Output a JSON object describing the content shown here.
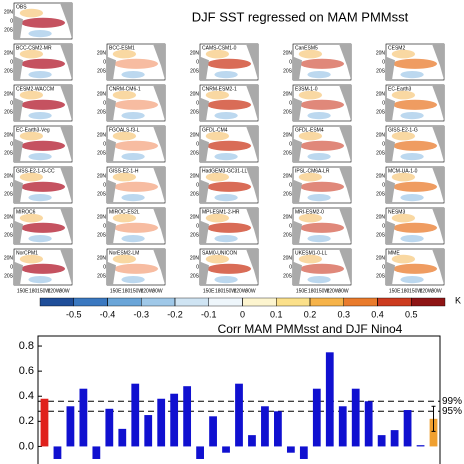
{
  "maps": {
    "title": "DJF SST regressed on MAM PMMsst",
    "panels": [
      "OBS",
      null,
      null,
      null,
      null,
      "BCC-CSM2-MR",
      "BCC-ESM1",
      "CAMS-CSM1-0",
      "CanESM5",
      "CESM2",
      "CESM2-WACCM",
      "CNRM-CM6-1",
      "CNRM-ESM2-1",
      "E3SM-1-0",
      "EC-Earth3",
      "EC-Earth3-Veg",
      "FGOALS-f3-L",
      "GFDL-CM4",
      "GFDL-ESM4",
      "GISS-E2-1-G",
      "GISS-E2-1-G-CC",
      "GISS-E2-1-H",
      "HadGEM3-GC31-LL",
      "IPSL-CM6A-LR",
      "MCM-UA-1-0",
      "MIROC6",
      "MIROC-ES2L",
      "MPI-ESM1-2-HR",
      "MRI-ESM2-0",
      "NESM3",
      "NorCPM1",
      "NorESM2-LM",
      "SAM0-UNICON",
      "UKESM1-0-LL",
      "MME"
    ],
    "lat_labels": [
      "20N",
      "0",
      "20S"
    ],
    "lon_labels": [
      "150E",
      "180",
      "150W",
      "120W",
      "90W"
    ]
  },
  "colorbar": {
    "unit": "K",
    "lim": [
      -0.6,
      0.6
    ],
    "ticks": [
      -0.5,
      -0.4,
      -0.3,
      -0.2,
      -0.1,
      0,
      0.1,
      0.2,
      0.3,
      0.4,
      0.5
    ],
    "colors": [
      "#1f4e99",
      "#3a78c0",
      "#6aa5d8",
      "#9fc8e8",
      "#cfe4f3",
      "#eef6fb",
      "#fdf5cf",
      "#fbe08a",
      "#f6b349",
      "#e97b2c",
      "#cc3b1f",
      "#8e1414"
    ]
  },
  "chart_data": {
    "type": "bar",
    "title": "Corr MAM PMMsst and DJF Nino4",
    "categories": [
      null,
      null,
      null,
      null,
      null,
      null,
      null,
      null,
      null,
      null,
      null,
      null,
      null,
      null,
      null,
      null,
      null,
      null,
      null,
      null,
      null,
      null,
      null,
      null,
      null,
      null,
      null,
      null,
      null,
      null,
      null
    ],
    "values": [
      0.38,
      -0.1,
      0.32,
      0.46,
      -0.1,
      0.3,
      0.14,
      0.5,
      0.25,
      0.38,
      0.42,
      0.48,
      -0.1,
      0.24,
      -0.05,
      0.5,
      0.09,
      0.32,
      0.28,
      -0.05,
      -0.1,
      0.46,
      0.75,
      0.32,
      0.46,
      0.36,
      0.09,
      0.13,
      0.29,
      0.01,
      0.22
    ],
    "colors": [
      "#e0201b",
      "#1010d0",
      "#1010d0",
      "#1010d0",
      "#1010d0",
      "#1010d0",
      "#1010d0",
      "#1010d0",
      "#1010d0",
      "#1010d0",
      "#1010d0",
      "#1010d0",
      "#1010d0",
      "#1010d0",
      "#1010d0",
      "#1010d0",
      "#1010d0",
      "#1010d0",
      "#1010d0",
      "#1010d0",
      "#1010d0",
      "#1010d0",
      "#1010d0",
      "#1010d0",
      "#1010d0",
      "#1010d0",
      "#1010d0",
      "#1010d0",
      "#1010d0",
      "#1010d0",
      "#f0a030"
    ],
    "errors": [
      null,
      null,
      null,
      null,
      null,
      null,
      null,
      null,
      null,
      null,
      null,
      null,
      null,
      null,
      null,
      null,
      null,
      null,
      null,
      null,
      null,
      null,
      null,
      null,
      null,
      null,
      null,
      null,
      null,
      null,
      0.1
    ],
    "ylim": [
      -0.14,
      0.88
    ],
    "yticks": [
      {
        "value": 0,
        "label": "0.0"
      },
      {
        "value": 0.2,
        "label": "0.2"
      },
      {
        "value": 0.4,
        "label": "0.4"
      },
      {
        "value": 0.6,
        "label": "0.6"
      },
      {
        "value": 0.8,
        "label": "0.8"
      }
    ],
    "thresholds": [
      {
        "value": 0.36,
        "label": "99%"
      },
      {
        "value": 0.28,
        "label": "95%"
      }
    ]
  }
}
